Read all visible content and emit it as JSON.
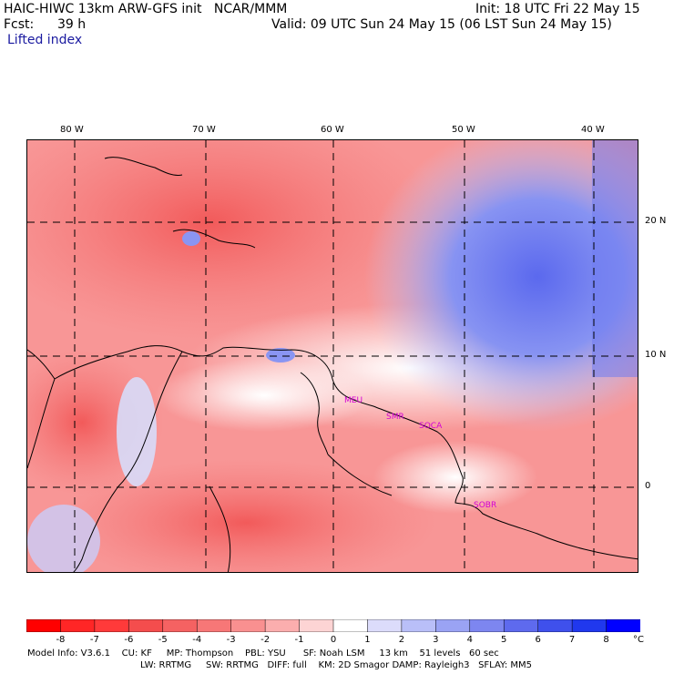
{
  "header": {
    "title": "HAIC-HIWC 13km ARW-GFS init   NCAR/MMM",
    "init": "Init: 18 UTC Fri 22 May 15",
    "fcst_label": "Fcst:",
    "fcst_value": "39 h",
    "valid": "Valid: 09 UTC Sun 24 May 15 (06 LST Sun 24 May 15)",
    "field": "Lifted index"
  },
  "map": {
    "lon_labels": [
      "80 W",
      "70 W",
      "60 W",
      "50 W",
      "40 W"
    ],
    "lat_labels": [
      "20 N",
      "10 N",
      "0"
    ],
    "lon_values": [
      -80,
      -70,
      -60,
      -50,
      -40
    ],
    "lat_values": [
      20,
      10,
      0
    ],
    "cities": [
      "MEU",
      "SMR",
      "SOCA",
      "SOBR"
    ]
  },
  "colorbar": {
    "labels": [
      "-8",
      "-7",
      "-6",
      "-5",
      "-4",
      "-3",
      "-2",
      "-1",
      "0",
      "1",
      "2",
      "3",
      "4",
      "5",
      "6",
      "7",
      "8",
      "°C"
    ],
    "colors": [
      "#ff0000",
      "#ff2626",
      "#ff3a3a",
      "#f44d4d",
      "#f56262",
      "#f77777",
      "#f99090",
      "#fbaeae",
      "#fdd4d4",
      "#ffffff",
      "#dcdcfb",
      "#b9bff8",
      "#9aa3f4",
      "#7d86f0",
      "#5e6aee",
      "#3f50ec",
      "#2038ee",
      "#0000ff"
    ]
  },
  "footer": {
    "line1": "Model Info: V3.6.1    CU: KF     MP: Thompson    PBL: YSU      SF: Noah LSM     13 km    51 levels   60 sec",
    "line2": "LW: RRTMG     SW: RRTMG   DIFF: full    KM: 2D Smagor DAMP: Rayleigh3   SFLAY: MM5"
  }
}
